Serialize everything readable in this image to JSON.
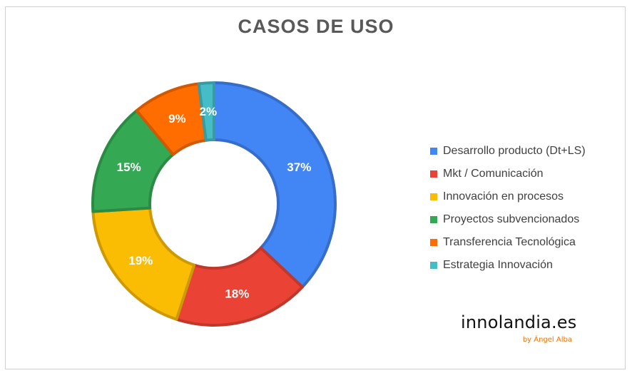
{
  "chart_data": {
    "type": "pie",
    "donut": true,
    "title": "CASOS DE USO",
    "legend_position": "right",
    "slices": [
      {
        "label": "Desarrollo producto (Dt+LS)",
        "value": 37,
        "display": "37%",
        "color": "#4285f4"
      },
      {
        "label": "Mkt / Comunicación",
        "value": 18,
        "display": "18%",
        "color": "#ea4335"
      },
      {
        "label": "Innovación en procesos",
        "value": 19,
        "display": "19%",
        "color": "#fbbc04"
      },
      {
        "label": "Proyectos subvencionados",
        "value": 15,
        "display": "15%",
        "color": "#34a853"
      },
      {
        "label": "Transferencia Tecnológica",
        "value": 9,
        "display": "9%",
        "color": "#ff6d01"
      },
      {
        "label": "Estrategia Innovación",
        "value": 2,
        "display": "2%",
        "color": "#46bdc6"
      }
    ]
  },
  "branding": {
    "name": "innolandia.es",
    "byline": "by Ángel Alba"
  }
}
